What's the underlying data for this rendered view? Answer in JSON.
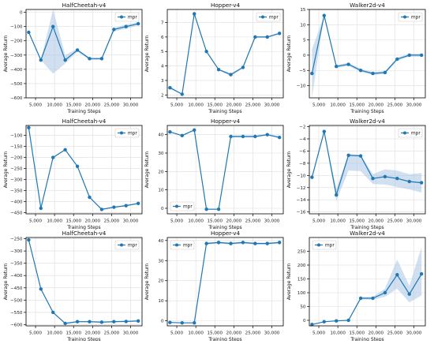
{
  "colors": {
    "line": "#1f77b4",
    "band": "#a9c6e3",
    "grid": "#dddddd",
    "axis": "#000000"
  },
  "chart_data": [
    {
      "type": "line",
      "title": "HalfCheetah-v4",
      "xlabel": "Training Steps",
      "ylabel": "Average Return",
      "xlim": [
        2500,
        33000
      ],
      "xticks": [
        5000,
        10000,
        15000,
        20000,
        25000,
        30000
      ],
      "xtick_labels": [
        "5,000",
        "10,000",
        "15,000",
        "20,000",
        "25,000",
        "30,000"
      ],
      "ylim": [
        -600,
        20
      ],
      "yticks": [
        -600,
        -500,
        -400,
        -300,
        -200,
        -100,
        0
      ],
      "ytick_labels": [
        "−600",
        "−500",
        "−400",
        "−300",
        "−200",
        "−100",
        "0"
      ],
      "grid": true,
      "legend": "top-right",
      "legend_label": "mpr",
      "x": [
        3200,
        6400,
        9600,
        12800,
        16000,
        19200,
        22400,
        25600,
        28800,
        32000
      ],
      "y": [
        -140,
        -335,
        -100,
        -335,
        -265,
        -325,
        -325,
        -120,
        -100,
        -80
      ],
      "band_low": [
        -140,
        -335,
        -430,
        -360,
        -275,
        -335,
        -335,
        -135,
        -115,
        -90
      ],
      "band_high": [
        -140,
        -335,
        20,
        -300,
        -255,
        -318,
        -318,
        -110,
        -85,
        -70
      ]
    },
    {
      "type": "line",
      "title": "Hopper-v4",
      "xlabel": "Training Steps",
      "ylabel": "Average Return",
      "xlim": [
        2500,
        33000
      ],
      "xticks": [
        5000,
        10000,
        15000,
        20000,
        25000,
        30000
      ],
      "xtick_labels": [
        "5,000",
        "10,000",
        "15,000",
        "20,000",
        "25,000",
        "30,000"
      ],
      "ylim": [
        1.8,
        7.9
      ],
      "yticks": [
        2,
        3,
        4,
        5,
        6,
        7
      ],
      "ytick_labels": [
        "2",
        "3",
        "4",
        "5",
        "6",
        "7"
      ],
      "grid": true,
      "legend": "top-right",
      "legend_label": "mpr",
      "x": [
        3200,
        6400,
        9600,
        12800,
        16000,
        19200,
        22400,
        25600,
        28800,
        32000
      ],
      "y": [
        2.5,
        2.05,
        7.6,
        5.0,
        3.75,
        3.4,
        3.9,
        6.0,
        6.0,
        6.25
      ],
      "band_low": [
        2.4,
        2.05,
        7.6,
        4.95,
        3.7,
        3.3,
        3.85,
        5.95,
        5.95,
        6.2
      ],
      "band_high": [
        2.6,
        2.05,
        7.6,
        5.05,
        3.8,
        3.5,
        3.95,
        6.05,
        6.05,
        6.3
      ]
    },
    {
      "type": "line",
      "title": "Walker2d-v4",
      "xlabel": "Training Steps",
      "ylabel": "Average Return",
      "xlim": [
        2500,
        33000
      ],
      "xticks": [
        5000,
        10000,
        15000,
        20000,
        25000,
        30000
      ],
      "xtick_labels": [
        "5,000",
        "10,000",
        "15,000",
        "20,000",
        "25,000",
        "30,000"
      ],
      "ylim": [
        -14,
        15
      ],
      "yticks": [
        -10,
        -5,
        0,
        5,
        10,
        15
      ],
      "ytick_labels": [
        "−10",
        "−5",
        "0",
        "5",
        "10",
        "15"
      ],
      "grid": true,
      "legend": "top-right",
      "legend_label": "mpr",
      "x": [
        3200,
        6400,
        9600,
        12800,
        16000,
        19200,
        22400,
        25600,
        28800,
        32000
      ],
      "y": [
        -6,
        13,
        -3.7,
        -3,
        -5,
        -6,
        -5.7,
        -1.3,
        0,
        0
      ],
      "band_low": [
        -14,
        13,
        -4.2,
        -3.5,
        -5.5,
        -6.5,
        -6.2,
        -1.8,
        -0.5,
        -0.5
      ],
      "band_high": [
        2,
        13,
        -3.2,
        -2.5,
        -4.5,
        -5.5,
        -5.2,
        -0.8,
        0.5,
        0.5
      ]
    },
    {
      "type": "line",
      "title": "HalfCheetah-v4",
      "xlabel": "Training Steps",
      "ylabel": "Average Return",
      "xlim": [
        2500,
        33000
      ],
      "xticks": [
        5000,
        10000,
        15000,
        20000,
        25000,
        30000
      ],
      "xtick_labels": [
        "5,000",
        "10,000",
        "15,000",
        "20,000",
        "25,000",
        "30,000"
      ],
      "ylim": [
        -455,
        -55
      ],
      "yticks": [
        -450,
        -400,
        -350,
        -300,
        -250,
        -200,
        -150,
        -100
      ],
      "ytick_labels": [
        "−450",
        "−400",
        "−350",
        "−300",
        "−250",
        "−200",
        "−150",
        "−100"
      ],
      "grid": true,
      "legend": "top-right",
      "legend_label": "mpr",
      "x": [
        3200,
        6400,
        9600,
        12800,
        16000,
        19200,
        22400,
        25600,
        28800,
        32000
      ],
      "y": [
        -65,
        -430,
        -200,
        -165,
        -240,
        -380,
        -435,
        -425,
        -418,
        -408
      ],
      "band_low": [
        -65,
        -430,
        -203,
        -168,
        -243,
        -383,
        -438,
        -428,
        -421,
        -411
      ],
      "band_high": [
        -65,
        -430,
        -197,
        -162,
        -237,
        -377,
        -432,
        -422,
        -415,
        -405
      ]
    },
    {
      "type": "line",
      "title": "Hopper-v4",
      "xlabel": "Training Steps",
      "ylabel": "Average Return",
      "xlim": [
        2500,
        33000
      ],
      "xticks": [
        5000,
        10000,
        15000,
        20000,
        25000,
        30000
      ],
      "xtick_labels": [
        "5,000",
        "10,000",
        "15,000",
        "20,000",
        "25,000",
        "30,000"
      ],
      "ylim": [
        -3,
        45
      ],
      "yticks": [
        0,
        10,
        20,
        30,
        40
      ],
      "ytick_labels": [
        "0",
        "10",
        "20",
        "30",
        "40"
      ],
      "grid": true,
      "legend": "bottom-left",
      "legend_label": "mpr",
      "x": [
        3200,
        6400,
        9600,
        12800,
        16000,
        19200,
        22400,
        25600,
        28800,
        32000
      ],
      "y": [
        41.5,
        39.5,
        42.5,
        -0.5,
        -0.5,
        39,
        39,
        39,
        40,
        38.5
      ],
      "band_low": [
        41.5,
        39.5,
        42.5,
        -0.5,
        -0.5,
        38.5,
        38.5,
        38.5,
        39.5,
        38
      ],
      "band_high": [
        41.5,
        39.5,
        42.5,
        -0.5,
        -0.5,
        39.5,
        39.5,
        39.5,
        40.5,
        39
      ]
    },
    {
      "type": "line",
      "title": "Walker2d-v4",
      "xlabel": "Training Steps",
      "ylabel": "Average Return",
      "xlim": [
        2500,
        33000
      ],
      "xticks": [
        5000,
        10000,
        15000,
        20000,
        25000,
        30000
      ],
      "xtick_labels": [
        "5,000",
        "10,000",
        "15,000",
        "20,000",
        "25,000",
        "30,000"
      ],
      "ylim": [
        -16.3,
        -1.8
      ],
      "yticks": [
        -16,
        -14,
        -12,
        -10,
        -8,
        -6,
        -4,
        -2
      ],
      "ytick_labels": [
        "−16",
        "−14",
        "−12",
        "−10",
        "−8",
        "−6",
        "−4",
        "−2"
      ],
      "grid": true,
      "legend": "top-right",
      "legend_label": "mpr",
      "x": [
        3200,
        6400,
        9600,
        12800,
        16000,
        19200,
        22400,
        25600,
        28800,
        32000
      ],
      "y": [
        -10.3,
        -2.8,
        -13.2,
        -6.7,
        -6.8,
        -10.5,
        -10.2,
        -10.5,
        -11,
        -11.2
      ],
      "band_low": [
        -10.3,
        -2.8,
        -14.2,
        -9.2,
        -9.3,
        -11.4,
        -11.5,
        -11.9,
        -12.3,
        -12.8
      ],
      "band_high": [
        -10.3,
        -2.8,
        -12.2,
        -6.5,
        -6.6,
        -9.8,
        -9.0,
        -9.2,
        -9.8,
        -9.6
      ]
    },
    {
      "type": "line",
      "title": "HalfCheetah-v4",
      "xlabel": "Training Steps",
      "ylabel": "Average Return",
      "xlim": [
        2500,
        33000
      ],
      "xticks": [
        5000,
        10000,
        15000,
        20000,
        25000,
        30000
      ],
      "xtick_labels": [
        "5,000",
        "10,000",
        "15,000",
        "20,000",
        "25,000",
        "30,000"
      ],
      "ylim": [
        -605,
        -245
      ],
      "yticks": [
        -600,
        -550,
        -500,
        -450,
        -400,
        -350,
        -300,
        -250
      ],
      "ytick_labels": [
        "−600",
        "−550",
        "−500",
        "−450",
        "−400",
        "−350",
        "−300",
        "−250"
      ],
      "grid": true,
      "legend": "top-right",
      "legend_label": "mpr",
      "x": [
        3200,
        6400,
        9600,
        12800,
        16000,
        19200,
        22400,
        25600,
        28800,
        32000
      ],
      "y": [
        -255,
        -455,
        -550,
        -595,
        -588,
        -588,
        -590,
        -588,
        -587,
        -585
      ],
      "band_low": [
        -255,
        -455,
        -553,
        -598,
        -591,
        -591,
        -593,
        -591,
        -590,
        -588
      ],
      "band_high": [
        -255,
        -455,
        -547,
        -592,
        -585,
        -585,
        -587,
        -585,
        -584,
        -582
      ]
    },
    {
      "type": "line",
      "title": "Hopper-v4",
      "xlabel": "Training Steps",
      "ylabel": "Average Return",
      "xlim": [
        2500,
        33000
      ],
      "xticks": [
        5000,
        10000,
        15000,
        20000,
        25000,
        30000
      ],
      "xtick_labels": [
        "5,000",
        "10,000",
        "15,000",
        "20,000",
        "25,000",
        "30,000"
      ],
      "ylim": [
        -2.5,
        41.5
      ],
      "yticks": [
        0,
        10,
        20,
        30,
        40
      ],
      "ytick_labels": [
        "0",
        "10",
        "20",
        "30",
        "40"
      ],
      "grid": true,
      "legend": "top-left",
      "legend_label": "mpr",
      "x": [
        3200,
        6400,
        9600,
        12800,
        16000,
        19200,
        22400,
        25600,
        28800,
        32000
      ],
      "y": [
        -0.8,
        -1,
        -1,
        38.5,
        39,
        38.5,
        39,
        38.5,
        38.5,
        39
      ],
      "band_low": [
        -0.8,
        -1,
        -1,
        38,
        38.5,
        38,
        38.5,
        38,
        38,
        38.5
      ],
      "band_high": [
        -0.8,
        -1,
        -1,
        39,
        39.5,
        39,
        39.5,
        39,
        39,
        39.5
      ]
    },
    {
      "type": "line",
      "title": "Walker2d-v4",
      "xlabel": "Training Steps",
      "ylabel": "Average Return",
      "xlim": [
        2500,
        33000
      ],
      "xticks": [
        5000,
        10000,
        15000,
        20000,
        25000,
        30000
      ],
      "xtick_labels": [
        "5,000",
        "10,000",
        "15,000",
        "20,000",
        "25,000",
        "30,000"
      ],
      "ylim": [
        -20,
        300
      ],
      "yticks": [
        0,
        50,
        100,
        150,
        200,
        250
      ],
      "ytick_labels": [
        "0",
        "50",
        "100",
        "150",
        "200",
        "250"
      ],
      "grid": true,
      "legend": "top-left",
      "legend_label": "mpr",
      "x": [
        3200,
        6400,
        9600,
        12800,
        16000,
        19200,
        22400,
        25600,
        28800,
        32000
      ],
      "y": [
        -15,
        -5,
        -2,
        0,
        80,
        80,
        100,
        165,
        95,
        168
      ],
      "band_low": [
        -15,
        -5,
        -2,
        0,
        75,
        75,
        85,
        115,
        65,
        90
      ],
      "band_high": [
        -15,
        -5,
        -2,
        0,
        85,
        85,
        115,
        220,
        125,
        265
      ]
    }
  ]
}
